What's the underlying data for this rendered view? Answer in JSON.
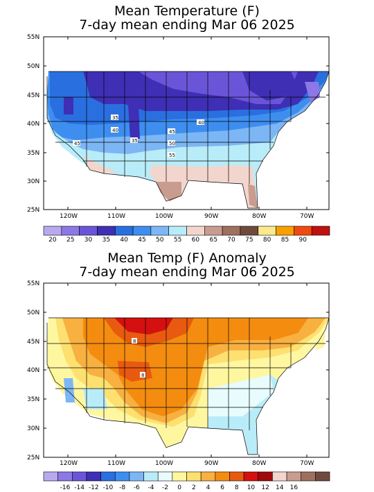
{
  "panel_top": {
    "title_line1": "Mean Temperature (F)",
    "title_line2": "7-day mean ending Mar 06 2025",
    "y_ticks": [
      "55N",
      "50N",
      "45N",
      "40N",
      "35N",
      "30N",
      "25N"
    ],
    "x_ticks": [
      "120W",
      "110W",
      "100W",
      "90W",
      "80W",
      "70W"
    ],
    "contour_labels": [
      "35",
      "40",
      "40",
      "35",
      "45",
      "45",
      "50",
      "55",
      "40"
    ],
    "colorbar_labels": [
      "20",
      "25",
      "30",
      "35",
      "40",
      "45",
      "50",
      "55",
      "60",
      "65",
      "70",
      "75",
      "80",
      "85",
      "90"
    ],
    "colors": [
      "#b8a9ef",
      "#8c78e6",
      "#6a55d8",
      "#3e2fb4",
      "#2a6fe0",
      "#3e8ef0",
      "#7cb6f5",
      "#b8ecf8",
      "#f2d6ce",
      "#c99c90",
      "#9e7060",
      "#704a3e",
      "#fce98c",
      "#f8a000",
      "#f04a10",
      "#c01010"
    ]
  },
  "panel_bottom": {
    "title_line1": "Mean Temp (F) Anomaly",
    "title_line2": "7-day mean ending Mar 06 2025",
    "y_ticks": [
      "55N",
      "50N",
      "45N",
      "40N",
      "35N",
      "30N",
      "25N"
    ],
    "x_ticks": [
      "120W",
      "110W",
      "100W",
      "90W",
      "80W",
      "70W"
    ],
    "contour_labels": [
      "8",
      "8"
    ],
    "colorbar_labels": [
      "-16",
      "-14",
      "-12",
      "-10",
      "-8",
      "-6",
      "-4",
      "-2",
      "0",
      "2",
      "4",
      "6",
      "8",
      "10",
      "12",
      "14",
      "16"
    ],
    "colors": [
      "#b8a9ef",
      "#8c78e6",
      "#6a55d8",
      "#3e2fb4",
      "#2a6fe0",
      "#3e8ef0",
      "#7cb6f5",
      "#b8ecf8",
      "#e8fbfd",
      "#fff7a0",
      "#fde070",
      "#f8b040",
      "#f48c10",
      "#e85a10",
      "#d41010",
      "#a00a0a",
      "#f2d6ce",
      "#c99c90",
      "#9e7060",
      "#704a3e"
    ]
  }
}
